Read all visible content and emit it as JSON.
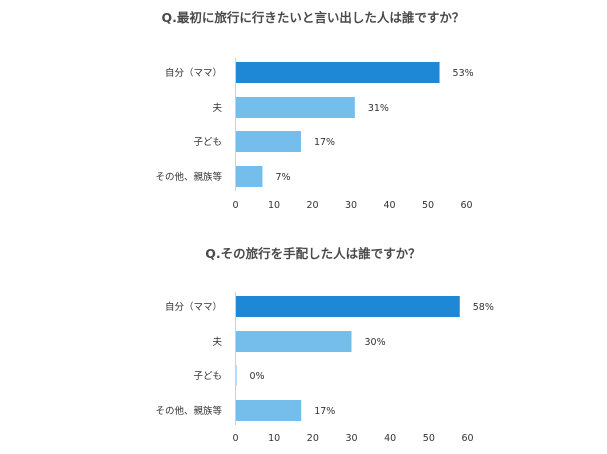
{
  "colors": {
    "highlight": "#1e88d6",
    "bar": "#75bdeb",
    "axis": "#d0d0d0",
    "text": "#333333"
  },
  "chart_data": [
    {
      "type": "bar",
      "orientation": "horizontal",
      "title": "Q.最初に旅行に行きたいと言い出した人は誰ですか？",
      "categories": [
        "自分（ママ）",
        "夫",
        "子ども",
        "その他、親族等"
      ],
      "values": [
        53,
        31,
        17,
        7
      ],
      "value_labels": [
        "53%",
        "31%",
        "17%",
        "7%"
      ],
      "xlim": [
        0,
        60
      ],
      "xticks": [
        "0",
        "10",
        "20",
        "30",
        "40",
        "50",
        "60"
      ],
      "highlight_index": 0,
      "grid": false
    },
    {
      "type": "bar",
      "orientation": "horizontal",
      "title": "Q.その旅行を手配した人は誰ですか？",
      "categories": [
        "自分（ママ）",
        "夫",
        "子ども",
        "その他、親族等"
      ],
      "values": [
        58,
        30,
        0,
        17
      ],
      "value_labels": [
        "58%",
        "30%",
        "0%",
        "17%"
      ],
      "xlim": [
        0,
        60
      ],
      "xticks": [
        "0",
        "10",
        "20",
        "30",
        "40",
        "50",
        "60"
      ],
      "highlight_index": 0,
      "grid": false
    }
  ]
}
